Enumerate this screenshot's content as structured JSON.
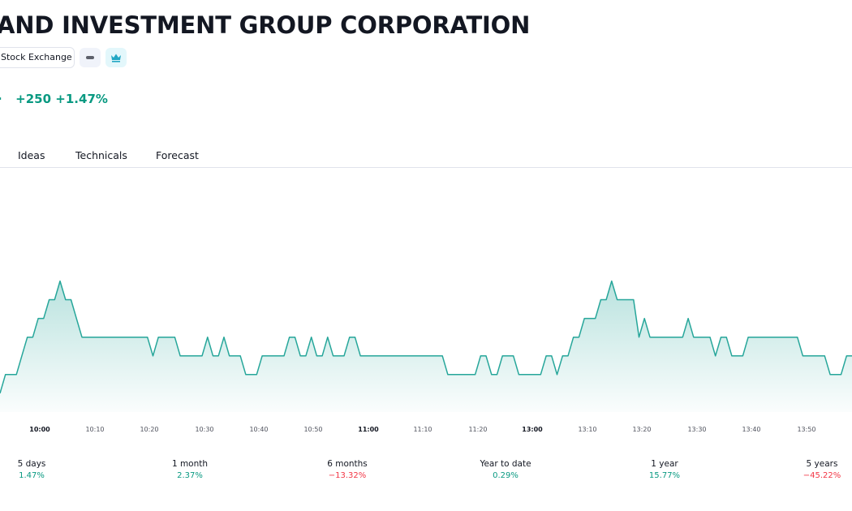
{
  "header": {
    "title": "AND INVESTMENT GROUP CORPORATION",
    "exchange_label": "Stock Exchange",
    "price_change": "+250",
    "price_change_percent": "+1.47%",
    "change_color": "#089981"
  },
  "tabs": [
    {
      "label": "Ideas"
    },
    {
      "label": "Technicals"
    },
    {
      "label": "Forecast"
    }
  ],
  "icons": {
    "minus_button": "minus-icon",
    "crown_button": "crown-icon"
  },
  "chart_data": {
    "type": "area",
    "title": "",
    "xlabel": "",
    "ylabel": "",
    "line_color": "#26a69a",
    "x_ticks": [
      "10:00",
      "10:10",
      "10:20",
      "10:30",
      "10:40",
      "10:50",
      "11:00",
      "11:10",
      "11:20",
      "13:00",
      "13:10",
      "13:20",
      "13:30",
      "13:40",
      "13:50"
    ],
    "y_range": [
      0,
      13
    ],
    "grid": false,
    "series": [
      {
        "values": [
          1,
          2,
          2,
          2,
          3,
          4,
          4,
          5,
          5,
          6,
          6,
          7,
          6,
          6,
          5,
          4,
          4,
          4,
          4,
          4,
          4,
          4,
          4,
          4,
          4,
          4,
          4,
          4,
          3,
          4,
          4,
          4,
          4,
          3,
          3,
          3,
          3,
          3,
          4,
          3,
          3,
          4,
          3,
          3,
          3,
          2,
          2,
          2,
          3,
          3,
          3,
          3,
          3,
          4,
          4,
          3,
          3,
          4,
          3,
          3,
          4,
          3,
          3,
          3,
          4,
          4,
          3,
          3,
          3,
          3,
          3,
          3,
          3,
          3,
          3,
          3,
          3,
          3,
          3,
          3,
          3,
          3,
          2,
          2,
          2,
          2,
          2,
          2,
          3,
          3,
          2,
          2,
          3,
          3,
          3,
          2,
          2,
          2,
          2,
          2,
          3,
          3,
          2,
          3,
          3,
          4,
          4,
          5,
          5,
          5,
          6,
          6,
          7,
          6,
          6,
          6,
          6,
          4,
          5,
          4,
          4,
          4,
          4,
          4,
          4,
          4,
          5,
          4,
          4,
          4,
          4,
          3,
          4,
          4,
          3,
          3,
          3,
          4,
          4,
          4,
          4,
          4,
          4,
          4,
          4,
          4,
          4,
          3,
          3,
          3,
          3,
          3,
          2,
          2,
          2,
          3,
          3
        ]
      }
    ]
  },
  "periods": [
    {
      "label": "5 days",
      "value": "1.47%",
      "trend": "positive"
    },
    {
      "label": "1 month",
      "value": "2.37%",
      "trend": "positive"
    },
    {
      "label": "6 months",
      "value": "−13.32%",
      "trend": "negative"
    },
    {
      "label": "Year to date",
      "value": "0.29%",
      "trend": "positive"
    },
    {
      "label": "1 year",
      "value": "15.77%",
      "trend": "positive"
    },
    {
      "label": "5 years",
      "value": "−45.22%",
      "trend": "negative"
    }
  ]
}
